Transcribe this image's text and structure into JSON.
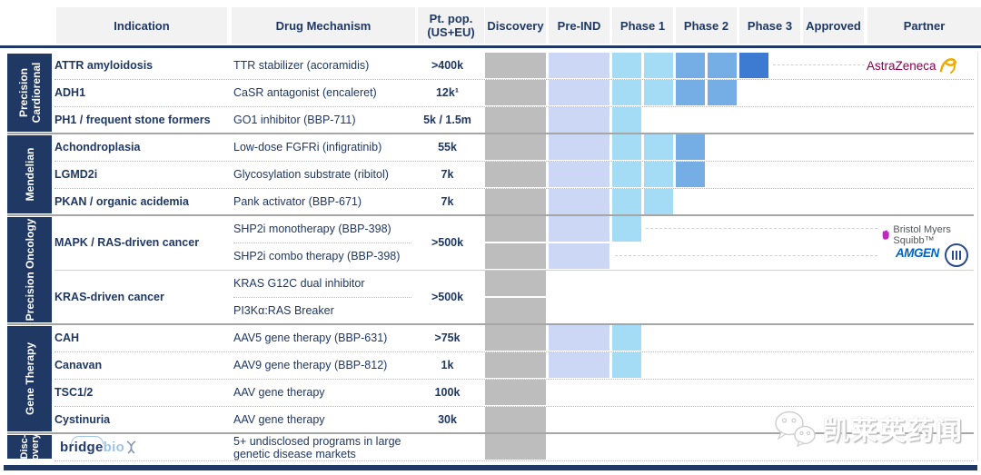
{
  "columns": {
    "indication": "Indication",
    "mechanism": "Drug Mechanism",
    "ptpop_line1": "Pt. pop.",
    "ptpop_line2": "(US+EU)",
    "phases": [
      "Discovery",
      "Pre-IND",
      "Phase 1",
      "Phase 2",
      "Phase 3",
      "Approved"
    ],
    "partner": "Partner"
  },
  "sections": [
    {
      "line1": "Precision",
      "line2": "Cardiorenal"
    },
    {
      "line1": "Mendelian"
    },
    {
      "line1": "Precision Oncology"
    },
    {
      "line1": "Gene Therapy"
    },
    {
      "line1": "Disc-",
      "line2": "overy"
    }
  ],
  "rows": [
    {
      "indication": "ATTR amyloidosis",
      "mechanism": "TTR stabilizer (acoramidis)",
      "ptpop": ">400k",
      "stages": [
        "disc",
        "pre",
        "p1",
        "p1",
        "p2",
        "p2",
        "p3"
      ],
      "partner": "AstraZeneca"
    },
    {
      "indication": "ADH1",
      "mechanism": "CaSR antagonist (encaleret)",
      "ptpop": "12k¹",
      "stages": [
        "disc",
        "pre",
        "p1",
        "p1",
        "p2",
        "p2"
      ]
    },
    {
      "indication": "PH1 / frequent stone formers",
      "mechanism": "GO1 inhibitor (BBP-711)",
      "ptpop": "5k / 1.5m",
      "stages": [
        "disc",
        "pre",
        "p1"
      ]
    },
    {
      "indication": "Achondroplasia",
      "mechanism": "Low-dose FGFRi (infigratinib)",
      "ptpop": "55k",
      "stages": [
        "disc",
        "pre",
        "p1",
        "p1",
        "p2"
      ]
    },
    {
      "indication": "LGMD2i",
      "mechanism": "Glycosylation substrate (ribitol)",
      "ptpop": "7k",
      "stages": [
        "disc",
        "pre",
        "p1",
        "p1",
        "p2"
      ]
    },
    {
      "indication": "PKAN / organic acidemia",
      "mechanism": "Pank activator (BBP-671)",
      "ptpop": "7k",
      "stages": [
        "disc",
        "pre",
        "p1",
        "p1"
      ]
    },
    {
      "indication": "MAPK / RAS-driven cancer",
      "mechanism": "SHP2i monotherapy (BBP-398)",
      "ptpop": ">500k",
      "stages": [
        "disc",
        "pre",
        "p1"
      ],
      "partner": "Bristol Myers Squibb™"
    },
    {
      "mechanism": "SHP2i combo therapy (BBP-398)",
      "stages": [
        "disc",
        "pre"
      ],
      "partner": "AMGEN"
    },
    {
      "indication": "KRAS-driven cancer",
      "mechanism": "KRAS G12C dual inhibitor",
      "ptpop": ">500k",
      "stages": [
        "disc"
      ]
    },
    {
      "mechanism": "PI3Kα:RAS Breaker",
      "stages": [
        "disc"
      ]
    },
    {
      "indication": "CAH",
      "mechanism": "AAV5 gene therapy (BBP-631)",
      "ptpop": ">75k",
      "stages": [
        "disc",
        "pre",
        "p1"
      ]
    },
    {
      "indication": "Canavan",
      "mechanism": "AAV9 gene therapy (BBP-812)",
      "ptpop": "1k",
      "stages": [
        "disc",
        "pre",
        "p1"
      ]
    },
    {
      "indication": "TSC1/2",
      "mechanism": "AAV gene therapy",
      "ptpop": "100k",
      "stages": [
        "disc"
      ]
    },
    {
      "indication": "Cystinuria",
      "mechanism": "AAV gene therapy",
      "ptpop": "30k",
      "stages": [
        "disc"
      ]
    },
    {
      "mechanism": "5+ undisclosed programs in large genetic disease markets",
      "stages": [
        "disc"
      ]
    }
  ],
  "stage_styles": {
    "disc": [
      "full",
      "#bdbdbd"
    ],
    "pre": [
      "full",
      "#ccd6f5"
    ],
    "p1": [
      "half",
      "#a5dcf5"
    ],
    "p2": [
      "half",
      "#74aee4"
    ],
    "p3": [
      "half",
      "#3d7ad2"
    ]
  },
  "colors": {
    "navy": "#1f3864",
    "header_bg": "#f2f2f2",
    "discovery_bar": "#bdbdbd",
    "pre_ind_bar": "#ccd6f5",
    "phase1_bar": "#a5dcf5",
    "phase2_bar": "#74aee4",
    "phase3_bar": "#3d7ad2",
    "astrazeneca_text": "#8a0051",
    "astrazeneca_gold": "#f0ab00",
    "bms_purple": "#be2bbb",
    "amgen_blue": "#0063c3"
  },
  "logo": {
    "part1": "bridge",
    "part2": "bio"
  },
  "partners": {
    "astrazeneca": "AstraZeneca",
    "bms": "Bristol Myers Squibb™",
    "amgen": "AMGEN"
  },
  "watermark": {
    "text": "凯莱英药闻"
  }
}
